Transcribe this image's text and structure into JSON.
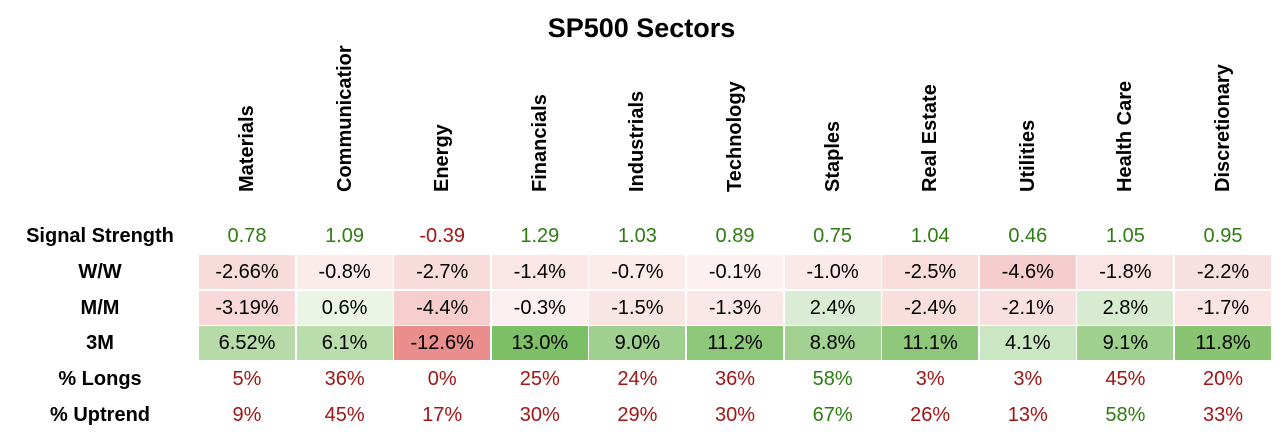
{
  "title": "SP500 Sectors",
  "colors": {
    "positive_text": "#2e7d12",
    "negative_text": "#a01616",
    "neutral_text": "#000000",
    "cell_positive_max": "#7dbf66",
    "cell_negative_max": "#e98a8a",
    "cell_base": "#ffffff"
  },
  "chart_data": {
    "type": "table",
    "title": "SP500 Sectors",
    "columns": [
      "Materials",
      "Communicatior",
      "Energy",
      "Financials",
      "Industrials",
      "Technology",
      "Staples",
      "Real Estate",
      "Utilities",
      "Health Care",
      "Discretionary"
    ],
    "rows": [
      {
        "label": "Signal Strength",
        "style": "colored-text",
        "values": [
          0.78,
          1.09,
          -0.39,
          1.29,
          1.03,
          0.89,
          0.75,
          1.04,
          0.46,
          1.05,
          0.95
        ],
        "display": [
          "0.78",
          "1.09",
          "-0.39",
          "1.29",
          "1.03",
          "0.89",
          "0.75",
          "1.04",
          "0.46",
          "1.05",
          "0.95"
        ],
        "text_sign": [
          "pos",
          "pos",
          "neg",
          "pos",
          "pos",
          "pos",
          "pos",
          "pos",
          "pos",
          "pos",
          "pos"
        ]
      },
      {
        "label": "W/W",
        "style": "heatmap",
        "values": [
          -2.66,
          -0.8,
          -2.7,
          -1.4,
          -0.7,
          -0.1,
          -1.0,
          -2.5,
          -4.6,
          -1.8,
          -2.2
        ],
        "display": [
          "-2.66%",
          "-0.8%",
          "-2.7%",
          "-1.4%",
          "-0.7%",
          "-0.1%",
          "-1.0%",
          "-2.5%",
          "-4.6%",
          "-1.8%",
          "-2.2%"
        ]
      },
      {
        "label": "M/M",
        "style": "heatmap",
        "values": [
          -3.19,
          0.6,
          -4.4,
          -0.3,
          -1.5,
          -1.3,
          2.4,
          -2.4,
          -2.1,
          2.8,
          -1.7
        ],
        "display": [
          "-3.19%",
          "0.6%",
          "-4.4%",
          "-0.3%",
          "-1.5%",
          "-1.3%",
          "2.4%",
          "-2.4%",
          "-2.1%",
          "2.8%",
          "-1.7%"
        ]
      },
      {
        "label": "3M",
        "style": "heatmap",
        "values": [
          6.52,
          6.1,
          -12.6,
          13.0,
          9.0,
          11.2,
          8.8,
          11.1,
          4.1,
          9.1,
          11.8
        ],
        "display": [
          "6.52%",
          "6.1%",
          "-12.6%",
          "13.0%",
          "9.0%",
          "11.2%",
          "8.8%",
          "11.1%",
          "4.1%",
          "9.1%",
          "11.8%"
        ]
      },
      {
        "label": "% Longs",
        "style": "colored-text",
        "values": [
          5,
          36,
          0,
          25,
          24,
          36,
          58,
          3,
          3,
          45,
          20
        ],
        "display": [
          "5%",
          "36%",
          "0%",
          "25%",
          "24%",
          "36%",
          "58%",
          "3%",
          "3%",
          "45%",
          "20%"
        ],
        "text_sign": [
          "neg",
          "neg",
          "neg",
          "neg",
          "neg",
          "neg",
          "pos",
          "neg",
          "neg",
          "neg",
          "neg"
        ]
      },
      {
        "label": "% Uptrend",
        "style": "colored-text",
        "values": [
          9,
          45,
          17,
          30,
          29,
          30,
          67,
          26,
          13,
          58,
          33
        ],
        "display": [
          "9%",
          "45%",
          "17%",
          "30%",
          "29%",
          "30%",
          "67%",
          "26%",
          "13%",
          "58%",
          "33%"
        ],
        "text_sign": [
          "neg",
          "neg",
          "neg",
          "neg",
          "neg",
          "neg",
          "pos",
          "neg",
          "neg",
          "pos",
          "neg"
        ]
      }
    ]
  }
}
